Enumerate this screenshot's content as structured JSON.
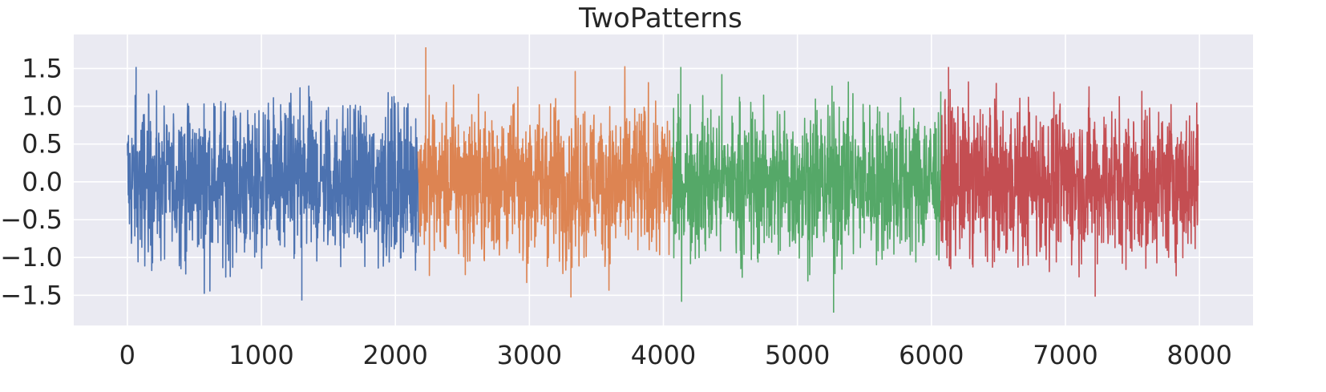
{
  "chart_data": {
    "type": "line",
    "title": "TwoPatterns",
    "xlabel": "",
    "ylabel": "",
    "xlim": [
      -400,
      8400
    ],
    "ylim": [
      -1.9,
      1.95
    ],
    "xticks": [
      0,
      1000,
      2000,
      3000,
      4000,
      5000,
      6000,
      7000,
      8000
    ],
    "xtick_labels": [
      "0",
      "1000",
      "2000",
      "3000",
      "4000",
      "5000",
      "6000",
      "7000",
      "8000"
    ],
    "yticks": [
      -1.5,
      -1.0,
      -0.5,
      0.0,
      0.5,
      1.0,
      1.5
    ],
    "ytick_labels": [
      "−1.5",
      "−1.0",
      "−0.5",
      "0.0",
      "0.5",
      "1.0",
      "1.5"
    ],
    "grid": true,
    "background": "#eaeaf2",
    "series": [
      {
        "color": "#4c72b0",
        "x_range": [
          0,
          2170
        ],
        "envelope_upper": [
          1.1,
          1.3,
          1.45,
          1.2,
          1.3,
          1.5,
          1.25,
          1.35,
          1.5,
          1.2,
          1.3
        ],
        "envelope_lower": [
          -1.1,
          -1.3,
          -1.4,
          -1.55,
          -1.3,
          -1.2,
          -1.35,
          -1.45,
          -1.3,
          -1.2,
          -1.25
        ],
        "peak_max": 1.52,
        "peak_min": -1.57
      },
      {
        "color": "#dd8452",
        "x_range": [
          2170,
          4070
        ],
        "envelope_upper": [
          1.8,
          1.4,
          1.55,
          1.3,
          1.45,
          1.7,
          1.4,
          1.55,
          1.6,
          1.3
        ],
        "envelope_lower": [
          -1.3,
          -1.4,
          -1.3,
          -1.45,
          -1.35,
          -1.4,
          -1.3,
          -1.5,
          -1.4,
          -1.3
        ],
        "peak_max": 1.78,
        "peak_min": -1.53
      },
      {
        "color": "#55a868",
        "x_range": [
          4070,
          6070
        ],
        "envelope_upper": [
          1.5,
          1.4,
          1.5,
          1.3,
          1.45,
          1.5,
          1.3,
          1.45,
          1.4,
          1.2
        ],
        "envelope_lower": [
          -1.7,
          -1.5,
          -1.6,
          -1.4,
          -1.5,
          -1.72,
          -1.5,
          -1.6,
          -1.45,
          -1.55
        ],
        "peak_max": 1.52,
        "peak_min": -1.73
      },
      {
        "color": "#c44e52",
        "x_range": [
          6070,
          7990
        ],
        "envelope_upper": [
          1.2,
          1.4,
          1.3,
          1.45,
          1.3,
          1.35,
          1.5,
          1.3,
          1.5,
          1.1
        ],
        "envelope_lower": [
          -1.1,
          -1.3,
          -1.5,
          -1.35,
          -1.4,
          -1.5,
          -1.3,
          -1.4,
          -1.45,
          -1.1
        ],
        "peak_max": 1.52,
        "peak_min": -1.52
      }
    ]
  }
}
